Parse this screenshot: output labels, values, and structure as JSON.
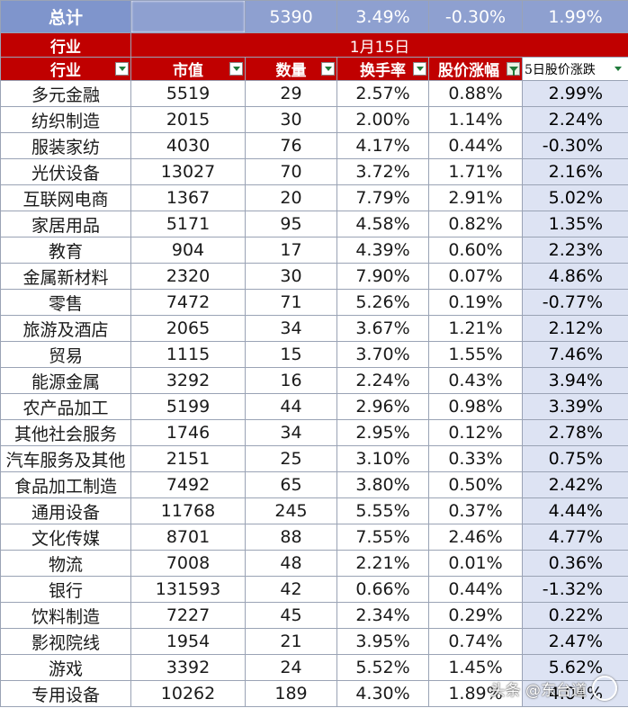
{
  "total_row": {
    "label": "总计",
    "blurred_value": "",
    "count": "5390",
    "turnover": "3.49%",
    "change": "-0.30%",
    "change_5d": "1.99%"
  },
  "date_row": {
    "label": "行业",
    "date": "1月15日"
  },
  "columns": [
    "行业",
    "市值",
    "数量",
    "换手率",
    "股价涨幅",
    "5日股价涨跌"
  ],
  "rows": [
    {
      "industry": "多元金融",
      "mcap": "5519",
      "count": "29",
      "turnover": "2.57%",
      "change": "0.88%",
      "change_5d": "2.99%"
    },
    {
      "industry": "纺织制造",
      "mcap": "2015",
      "count": "30",
      "turnover": "2.00%",
      "change": "1.14%",
      "change_5d": "2.24%"
    },
    {
      "industry": "服装家纺",
      "mcap": "4030",
      "count": "76",
      "turnover": "4.17%",
      "change": "0.44%",
      "change_5d": "-0.30%"
    },
    {
      "industry": "光伏设备",
      "mcap": "13027",
      "count": "70",
      "turnover": "3.72%",
      "change": "1.71%",
      "change_5d": "2.16%"
    },
    {
      "industry": "互联网电商",
      "mcap": "1367",
      "count": "20",
      "turnover": "7.79%",
      "change": "2.91%",
      "change_5d": "5.02%"
    },
    {
      "industry": "家居用品",
      "mcap": "5171",
      "count": "95",
      "turnover": "4.58%",
      "change": "0.82%",
      "change_5d": "1.35%"
    },
    {
      "industry": "教育",
      "mcap": "904",
      "count": "17",
      "turnover": "4.39%",
      "change": "0.60%",
      "change_5d": "2.23%"
    },
    {
      "industry": "金属新材料",
      "mcap": "2320",
      "count": "30",
      "turnover": "7.90%",
      "change": "0.07%",
      "change_5d": "4.86%"
    },
    {
      "industry": "零售",
      "mcap": "7472",
      "count": "71",
      "turnover": "5.26%",
      "change": "0.19%",
      "change_5d": "-0.77%"
    },
    {
      "industry": "旅游及酒店",
      "mcap": "2065",
      "count": "34",
      "turnover": "3.67%",
      "change": "1.21%",
      "change_5d": "2.12%"
    },
    {
      "industry": "贸易",
      "mcap": "1115",
      "count": "15",
      "turnover": "3.70%",
      "change": "1.55%",
      "change_5d": "7.46%"
    },
    {
      "industry": "能源金属",
      "mcap": "3292",
      "count": "16",
      "turnover": "2.24%",
      "change": "0.43%",
      "change_5d": "3.94%"
    },
    {
      "industry": "农产品加工",
      "mcap": "5199",
      "count": "44",
      "turnover": "2.96%",
      "change": "0.98%",
      "change_5d": "3.39%"
    },
    {
      "industry": "其他社会服务",
      "mcap": "1746",
      "count": "34",
      "turnover": "2.95%",
      "change": "0.12%",
      "change_5d": "2.78%"
    },
    {
      "industry": "汽车服务及其他",
      "mcap": "2151",
      "count": "25",
      "turnover": "3.10%",
      "change": "0.33%",
      "change_5d": "0.75%"
    },
    {
      "industry": "食品加工制造",
      "mcap": "7492",
      "count": "65",
      "turnover": "3.80%",
      "change": "0.50%",
      "change_5d": "2.42%"
    },
    {
      "industry": "通用设备",
      "mcap": "11768",
      "count": "245",
      "turnover": "5.55%",
      "change": "0.37%",
      "change_5d": "4.44%"
    },
    {
      "industry": "文化传媒",
      "mcap": "8701",
      "count": "88",
      "turnover": "7.55%",
      "change": "2.46%",
      "change_5d": "4.77%"
    },
    {
      "industry": "物流",
      "mcap": "7008",
      "count": "48",
      "turnover": "2.21%",
      "change": "0.01%",
      "change_5d": "0.36%"
    },
    {
      "industry": "银行",
      "mcap": "131593",
      "count": "42",
      "turnover": "0.66%",
      "change": "0.44%",
      "change_5d": "-1.32%"
    },
    {
      "industry": "饮料制造",
      "mcap": "7227",
      "count": "45",
      "turnover": "2.34%",
      "change": "0.29%",
      "change_5d": "0.22%"
    },
    {
      "industry": "影视院线",
      "mcap": "1954",
      "count": "21",
      "turnover": "3.95%",
      "change": "0.74%",
      "change_5d": "2.47%"
    },
    {
      "industry": "游戏",
      "mcap": "3392",
      "count": "24",
      "turnover": "5.52%",
      "change": "1.45%",
      "change_5d": "5.62%"
    },
    {
      "industry": "专用设备",
      "mcap": "10262",
      "count": "189",
      "turnover": "4.30%",
      "change": "1.89%",
      "change_5d": "4.04%"
    }
  ],
  "watermark": {
    "text": "头条 @东台道"
  },
  "colors": {
    "header_red": "#c00000",
    "total_blue": "#8ea0d0",
    "last_col_bg": "#dde3f3",
    "filter_green": "#1f7a3a"
  }
}
